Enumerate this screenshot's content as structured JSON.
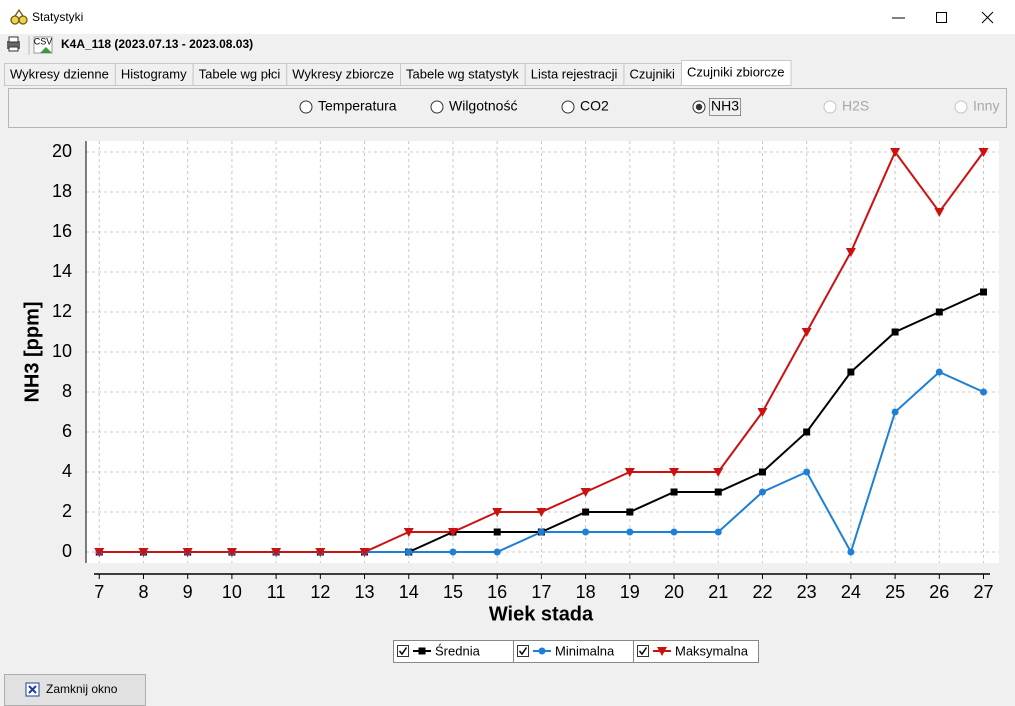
{
  "window": {
    "title": "Statystyki",
    "toolbar_icon_label": "CSV",
    "report_title": "K4A_118 (2023.07.13 - 2023.08.03)",
    "tabs": [
      {
        "label": "Wykresy dzienne",
        "active": false
      },
      {
        "label": "Histogramy",
        "active": false
      },
      {
        "label": "Tabele wg płci",
        "active": false
      },
      {
        "label": "Wykresy zbiorcze",
        "active": false
      },
      {
        "label": "Tabele wg statystyk",
        "active": false
      },
      {
        "label": "Lista rejestracji",
        "active": false
      },
      {
        "label": "Czujniki",
        "active": false
      },
      {
        "label": "Czujniki zbiorcze",
        "active": true
      }
    ],
    "radios": [
      {
        "label": "Temperatura",
        "checked": false,
        "enabled": true
      },
      {
        "label": "Wilgotność",
        "checked": false,
        "enabled": true
      },
      {
        "label": "CO2",
        "checked": false,
        "enabled": true
      },
      {
        "label": "NH3",
        "checked": true,
        "enabled": true
      },
      {
        "label": "H2S",
        "checked": false,
        "enabled": false
      },
      {
        "label": "Inny",
        "checked": false,
        "enabled": false
      }
    ],
    "close_button": "Zamknij okno"
  },
  "chart_data": {
    "type": "line",
    "x_label": "Wiek stada",
    "y_label": "NH3 [ppm]",
    "x": [
      7,
      8,
      9,
      10,
      11,
      12,
      13,
      14,
      15,
      16,
      17,
      18,
      19,
      20,
      21,
      22,
      23,
      24,
      25,
      26,
      27
    ],
    "series": [
      {
        "name": "Średnia",
        "color": "#000000",
        "marker": "square",
        "visible": true,
        "values": [
          0,
          0,
          0,
          0,
          0,
          0,
          0,
          0,
          1,
          1,
          1,
          2,
          2,
          3,
          3,
          4,
          6,
          9,
          11,
          12,
          13
        ]
      },
      {
        "name": "Minimalna",
        "color": "#1e7fd4",
        "marker": "circle",
        "visible": true,
        "values": [
          0,
          0,
          0,
          0,
          0,
          0,
          0,
          0,
          0,
          0,
          1,
          1,
          1,
          1,
          1,
          3,
          4,
          0,
          7,
          9,
          8
        ]
      },
      {
        "name": "Maksymalna",
        "color": "#cc1111",
        "marker": "triangle-down",
        "visible": true,
        "values": [
          0,
          0,
          0,
          0,
          0,
          0,
          0,
          1,
          1,
          2,
          2,
          3,
          4,
          4,
          4,
          7,
          11,
          15,
          20,
          17,
          20
        ]
      }
    ],
    "xlim": [
      6.7,
      27.35
    ],
    "ylim": [
      -0.55,
      20.55
    ],
    "xticks": [
      7,
      8,
      9,
      10,
      11,
      12,
      13,
      14,
      15,
      16,
      17,
      18,
      19,
      20,
      21,
      22,
      23,
      24,
      25,
      26,
      27
    ],
    "yticks": [
      0,
      2,
      4,
      6,
      8,
      10,
      12,
      14,
      16,
      18,
      20
    ],
    "grid": true
  }
}
